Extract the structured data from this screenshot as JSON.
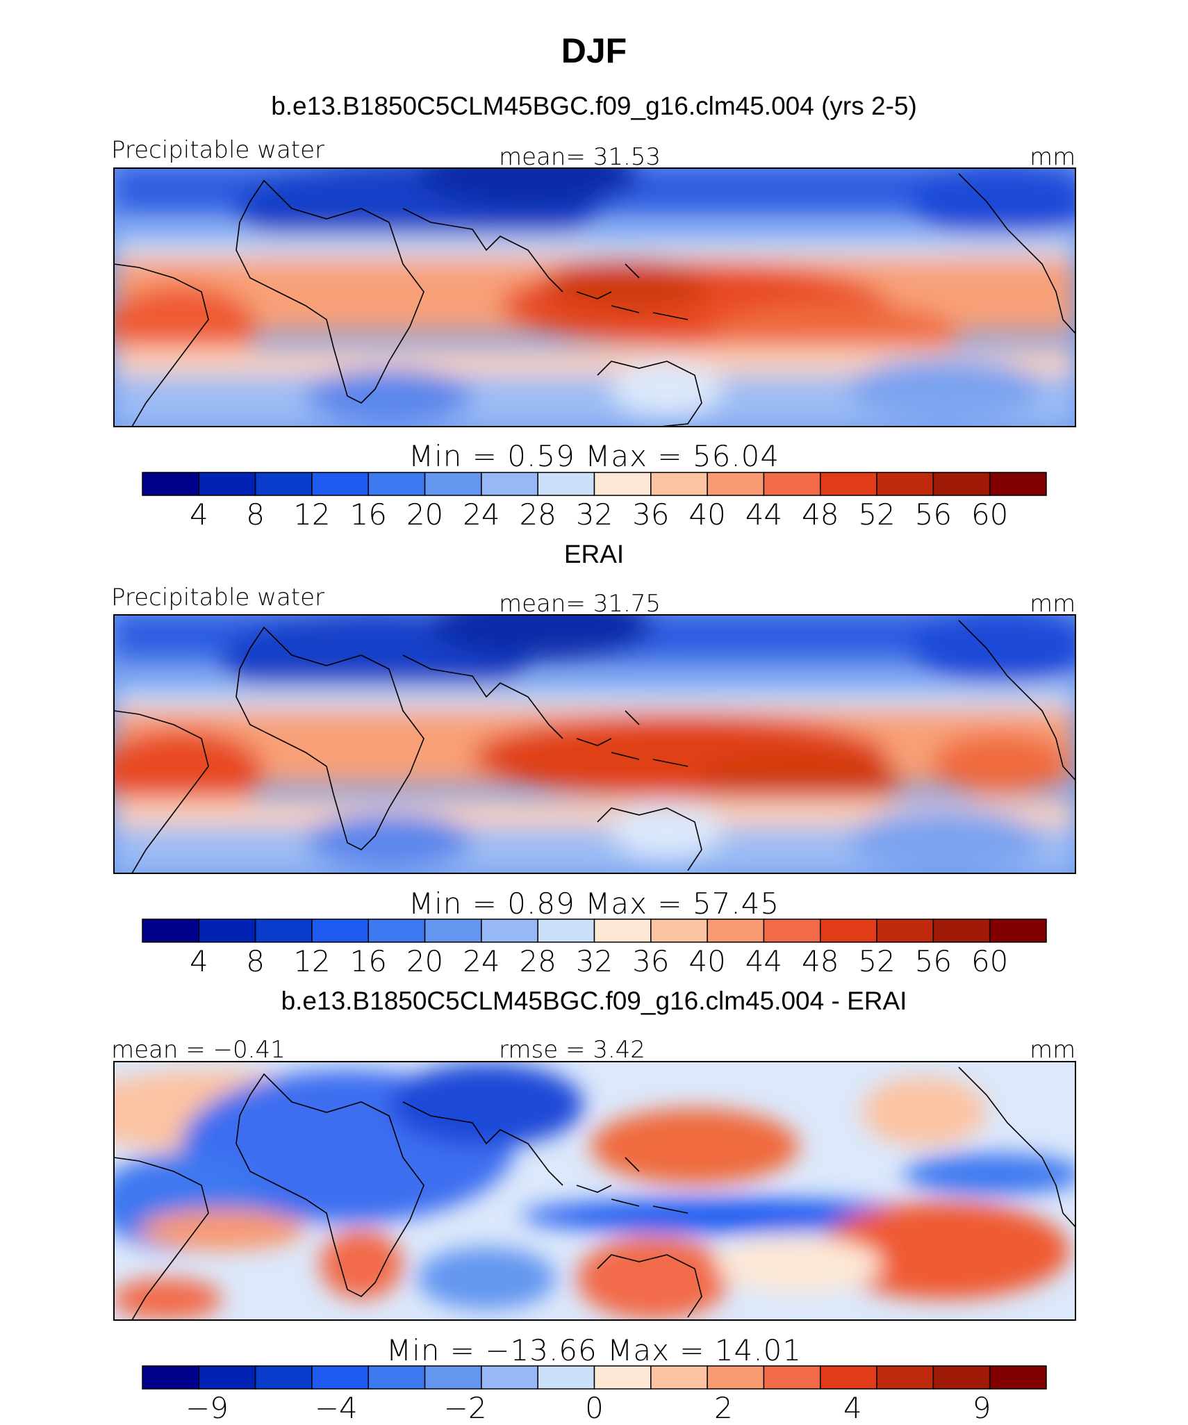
{
  "figure": {
    "title": "DJF"
  },
  "panels": [
    {
      "heading": "b.e13.B1850C5CLM45BGC.f09_g16.clm45.004 (yrs 2-5)",
      "left_label": "Precipitable water",
      "center_label": "mean=   31.53",
      "right_label": "mm",
      "minmax": "Min  =     0.59  Max  =    56.04",
      "colorbar_ticks": [
        "4",
        "8",
        "12",
        "16",
        "20",
        "24",
        "28",
        "32",
        "36",
        "40",
        "44",
        "48",
        "52",
        "56",
        "60"
      ],
      "colorbar_colors": [
        "#00008b",
        "#0022b5",
        "#0a3ccc",
        "#1e5af0",
        "#3c78f0",
        "#6496f0",
        "#96b9f5",
        "#cce0fa",
        "#fde8d6",
        "#fcc3a3",
        "#f89a72",
        "#f26b48",
        "#e03c18",
        "#c02a0c",
        "#a01a08",
        "#820000"
      ]
    },
    {
      "heading": "ERAI",
      "left_label": "Precipitable water",
      "center_label": "mean=   31.75",
      "right_label": "mm",
      "minmax": "Min  =     0.89  Max  =    57.45",
      "colorbar_ticks": [
        "4",
        "8",
        "12",
        "16",
        "20",
        "24",
        "28",
        "32",
        "36",
        "40",
        "44",
        "48",
        "52",
        "56",
        "60"
      ],
      "colorbar_colors": [
        "#00008b",
        "#0022b5",
        "#0a3ccc",
        "#1e5af0",
        "#3c78f0",
        "#6496f0",
        "#96b9f5",
        "#cce0fa",
        "#fde8d6",
        "#fcc3a3",
        "#f89a72",
        "#f26b48",
        "#e03c18",
        "#c02a0c",
        "#a01a08",
        "#820000"
      ]
    },
    {
      "heading": "b.e13.B1850C5CLM45BGC.f09_g16.clm45.004 - ERAI",
      "left_label": "mean =   −0.41",
      "center_label": "rmse =    3.42",
      "right_label": "mm",
      "minmax": "Min  = −13.66  Max  =    14.01",
      "colorbar_ticks": [
        "−9",
        "",
        "−4",
        "",
        "−2",
        "",
        "0",
        "",
        "2",
        "",
        "4",
        "",
        "9"
      ],
      "colorbar_colors": [
        "#00008b",
        "#0022b5",
        "#0a3ccc",
        "#1e5af0",
        "#3c78f0",
        "#6496f0",
        "#96b9f5",
        "#cce0fa",
        "#fde8d6",
        "#fcc3a3",
        "#f89a72",
        "#f26b48",
        "#e03c18",
        "#c02a0c",
        "#a01a08",
        "#820000"
      ]
    }
  ]
}
